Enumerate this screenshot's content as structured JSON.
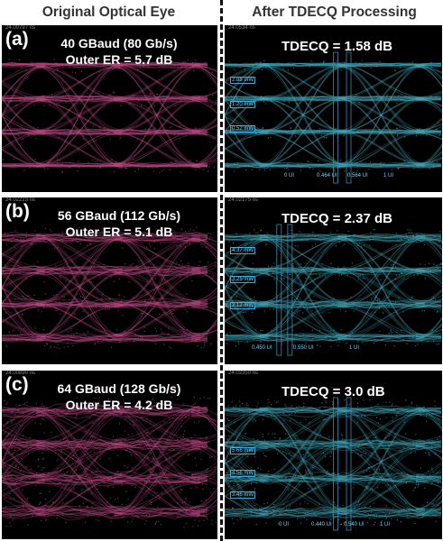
{
  "headings": {
    "left": "Original Optical Eye",
    "right": "After TDECQ Processing"
  },
  "colors": {
    "original": "#e0589e",
    "processed": "#4fc6da",
    "background": "#000000"
  },
  "rows": [
    {
      "tag": "(a)",
      "baud": "40 GBaud (80 Gb/s)",
      "er": "Outer ER = 5.7 dB",
      "tdecq": "TDECQ = 1.58 dB",
      "timestamp_left": "24.00797 ns",
      "timestamp_right": "24.0534 ns",
      "markers": [
        "2.88 mW",
        "1.20 mW",
        "0.52 mW"
      ],
      "ui_labels": [
        "0 UI",
        "0.464 UI",
        "0.564 UI",
        "1 UI"
      ]
    },
    {
      "tag": "(b)",
      "baud": "56 GBaud (112 Gb/s)",
      "er": "Outer ER = 5.1 dB",
      "tdecq": "TDECQ = 2.37 dB",
      "timestamp_left": "24.02223 ns",
      "timestamp_right": "24.02175 ns",
      "markers": [
        "4.37 mW",
        "3.25 mW",
        "2.12 mW"
      ],
      "ui_labels": [
        "0.450 UI",
        "0.550 UI",
        "1 UI"
      ]
    },
    {
      "tag": "(c)",
      "baud": "64 GBaud (128 Gb/s)",
      "er": "Outer ER = 4.2 dB",
      "tdecq": "TDECQ = 3.0 dB",
      "timestamp_left": "24.00890 ns",
      "timestamp_right": "24.03350 ns",
      "markers": [
        "5.66 mW",
        "4.56 mW",
        "3.46 mW"
      ],
      "ui_labels": [
        "0 UI",
        "0.440 UI",
        "0.540 UI",
        "1 UI"
      ]
    }
  ]
}
